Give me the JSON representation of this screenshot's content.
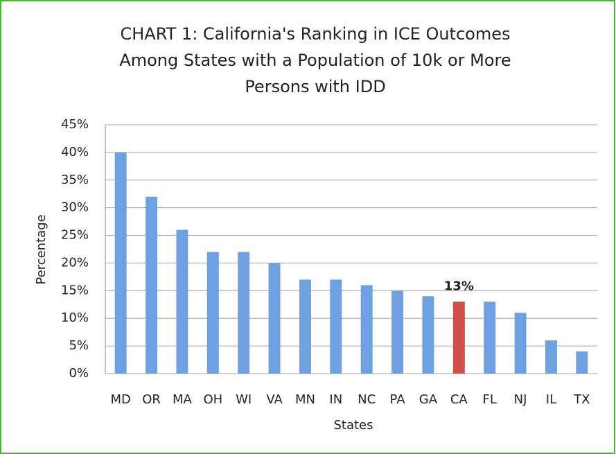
{
  "chart_data": {
    "type": "bar",
    "title": [
      "CHART 1:  California's Ranking in ICE Outcomes",
      "Among States with a Population of 10k or More",
      "Persons with IDD"
    ],
    "x_label": "States",
    "y_label": "Percentage",
    "categories": [
      "MD",
      "OR",
      "MA",
      "OH",
      "WI",
      "VA",
      "MN",
      "IN",
      "NC",
      "PA",
      "GA",
      "CA",
      "FL",
      "NJ",
      "IL",
      "TX"
    ],
    "values": [
      40,
      32,
      26,
      22,
      22,
      20,
      17,
      17,
      16,
      15,
      14,
      13,
      13,
      11,
      6,
      4
    ],
    "value_labels": [
      null,
      null,
      null,
      null,
      null,
      null,
      null,
      null,
      null,
      null,
      null,
      "13%",
      null,
      null,
      null,
      null
    ],
    "colors": [
      "#6fa1e0",
      "#6fa1e0",
      "#6fa1e0",
      "#6fa1e0",
      "#6fa1e0",
      "#6fa1e0",
      "#6fa1e0",
      "#6fa1e0",
      "#6fa1e0",
      "#6fa1e0",
      "#6fa1e0",
      "#d0504c",
      "#6fa1e0",
      "#6fa1e0",
      "#6fa1e0",
      "#6fa1e0"
    ],
    "ylim": [
      0,
      45
    ],
    "yticks": [
      {
        "value": 0,
        "label": "0%"
      },
      {
        "value": 5,
        "label": "5%"
      },
      {
        "value": 10,
        "label": "10%"
      },
      {
        "value": 15,
        "label": "15%"
      },
      {
        "value": 20,
        "label": "20%"
      },
      {
        "value": 25,
        "label": "25%"
      },
      {
        "value": 30,
        "label": "30%"
      },
      {
        "value": 35,
        "label": "35%"
      },
      {
        "value": 40,
        "label": "40%"
      },
      {
        "value": 45,
        "label": "45%"
      }
    ],
    "grid": true
  }
}
